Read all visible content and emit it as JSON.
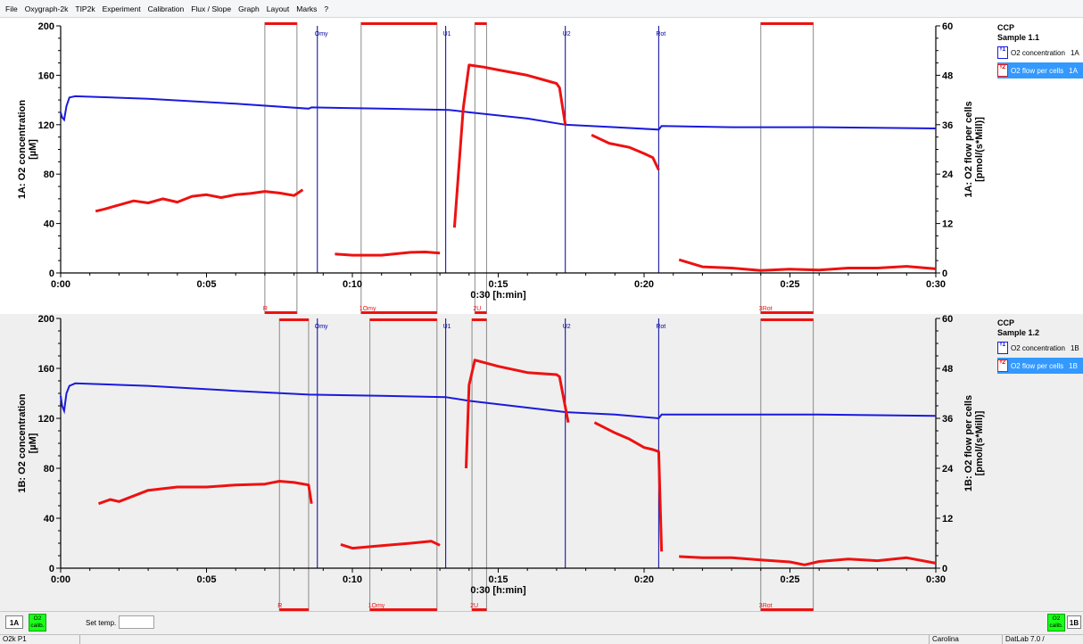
{
  "menu": [
    "File",
    "Oxygraph-2k",
    "TIP2k",
    "Experiment",
    "Calibration",
    "Flux / Slope",
    "Graph",
    "Layout",
    "Marks",
    "?"
  ],
  "colors": {
    "o2": "#1a1adc",
    "flow": "#ee1111",
    "mark_line": "#8a8a8a",
    "event_line": "#0000a0",
    "calib": "#1aff1a",
    "selected": "#3399ff"
  },
  "chart_data": [
    {
      "type": "line",
      "xlabel": "0:30 [h:min]",
      "ylabel": "1A: O2 concentration\n[µM]",
      "y2label": "1A: O2 flow per cells\n[pmol/(s*Mill)]",
      "x_ticks": [
        "0:00",
        "0:05",
        "0:10",
        "0:15",
        "0:20",
        "0:25",
        "0:30"
      ],
      "y_ticks": [
        "0",
        "40",
        "80",
        "120",
        "160",
        "200"
      ],
      "y2_ticks": [
        "0",
        "12",
        "24",
        "36",
        "48",
        "60"
      ],
      "xlim": [
        0,
        30
      ],
      "ylim": [
        0,
        200
      ],
      "y2lim": [
        0,
        60
      ],
      "events": [
        {
          "t": 8.8,
          "label": "Omy"
        },
        {
          "t": 13.2,
          "label": "U1"
        },
        {
          "t": 17.3,
          "label": "U2"
        },
        {
          "t": 20.5,
          "label": "Rot"
        }
      ],
      "marks": [
        {
          "t0": 7.0,
          "t1": 8.1,
          "label": "R"
        },
        {
          "t0": 10.3,
          "t1": 12.9,
          "label": "1Omy"
        },
        {
          "t0": 14.2,
          "t1": 14.6,
          "label": "2U"
        },
        {
          "t0": 24.0,
          "t1": 25.8,
          "label": "3Rot"
        }
      ],
      "series": [
        {
          "name": "O2 concentration",
          "axis": "left",
          "x": [
            0,
            0.05,
            0.12,
            0.2,
            0.3,
            0.5,
            3,
            6,
            8.5,
            8.6,
            11,
            13.3,
            14,
            16,
            17.3,
            19,
            20.5,
            20.6,
            23,
            26,
            30
          ],
          "y": [
            130,
            126,
            124,
            135,
            142,
            143,
            141,
            137,
            133,
            134,
            133,
            132,
            130,
            125,
            120,
            118,
            116,
            119,
            118,
            118,
            117
          ]
        },
        {
          "name": "O2 flow per cells",
          "axis": "right",
          "segments": [
            {
              "x": [
                1.2,
                1.5,
                2,
                2.5,
                3,
                3.5,
                4,
                4.5,
                5,
                5.5,
                6,
                6.5,
                7,
                7.5,
                8,
                8.3
              ],
              "y": [
                15,
                15.5,
                16.5,
                17.5,
                17,
                18,
                17.2,
                18.6,
                19,
                18.3,
                19,
                19.3,
                19.8,
                19.4,
                18.8,
                20.2
              ]
            },
            {
              "x": [
                9.4,
                10,
                11,
                12,
                12.5,
                13
              ],
              "y": [
                4.6,
                4.3,
                4.3,
                5,
                5.1,
                4.8
              ]
            },
            {
              "x": [
                13.5,
                13.8,
                14,
                14.5,
                15,
                16,
                16.5,
                17,
                17.1,
                17.3
              ],
              "y": [
                11,
                40,
                50.5,
                50,
                49.3,
                48,
                47,
                46,
                45,
                36
              ]
            },
            {
              "x": [
                18.2,
                18.8,
                19.5,
                20,
                20.3,
                20.5
              ],
              "y": [
                33.5,
                31.5,
                30.5,
                29,
                28,
                25
              ]
            },
            {
              "x": [
                21.2,
                22,
                23,
                24,
                25,
                26,
                27,
                28,
                29,
                30
              ],
              "y": [
                3.2,
                1.5,
                1.2,
                0.6,
                0.9,
                0.7,
                1.2,
                1.2,
                1.6,
                1.0
              ]
            }
          ]
        }
      ],
      "legend": {
        "title": "CCP",
        "subtitle": "Sample 1.1",
        "items": [
          {
            "label": "O2 concentration",
            "code": "1A",
            "selected": false
          },
          {
            "label": "O2 flow per cells",
            "code": "1A",
            "selected": true
          }
        ]
      }
    },
    {
      "type": "line",
      "xlabel": "0:30 [h:min]",
      "ylabel": "1B: O2 concentration\n[µM]",
      "y2label": "1B: O2 flow per cells\n[pmol/(s*Mill)]",
      "x_ticks": [
        "0:00",
        "0:05",
        "0:10",
        "0:15",
        "0:20",
        "0:25",
        "0:30"
      ],
      "y_ticks": [
        "0",
        "40",
        "80",
        "120",
        "160",
        "200"
      ],
      "y2_ticks": [
        "0",
        "12",
        "24",
        "36",
        "48",
        "60"
      ],
      "xlim": [
        0,
        30
      ],
      "ylim": [
        0,
        200
      ],
      "y2lim": [
        0,
        60
      ],
      "events": [
        {
          "t": 8.8,
          "label": "Omy"
        },
        {
          "t": 13.2,
          "label": "U1"
        },
        {
          "t": 17.3,
          "label": "U2"
        },
        {
          "t": 20.5,
          "label": "Rot"
        }
      ],
      "marks": [
        {
          "t0": 7.5,
          "t1": 8.5,
          "label": "R"
        },
        {
          "t0": 10.6,
          "t1": 12.9,
          "label": "1Omy"
        },
        {
          "t0": 14.1,
          "t1": 14.6,
          "label": "2U"
        },
        {
          "t0": 24.0,
          "t1": 25.8,
          "label": "3Rot"
        }
      ],
      "series": [
        {
          "name": "O2 concentration",
          "axis": "left",
          "x": [
            0,
            0.05,
            0.12,
            0.2,
            0.3,
            0.5,
            3,
            6,
            8.5,
            11,
            13.2,
            14,
            17.3,
            19,
            20.5,
            20.6,
            23,
            26,
            30
          ],
          "y": [
            138,
            130,
            126,
            140,
            146,
            148,
            146,
            142,
            139,
            138,
            137,
            134,
            125,
            123,
            120,
            123,
            123,
            123,
            122
          ]
        },
        {
          "name": "O2 flow per cells",
          "axis": "right",
          "segments": [
            {
              "x": [
                1.3,
                1.7,
                2,
                3,
                4,
                5,
                6,
                7,
                7.5,
                8,
                8.5,
                8.6
              ],
              "y": [
                15.5,
                16.5,
                16,
                18.7,
                19.5,
                19.5,
                20,
                20.2,
                20.9,
                20.6,
                20,
                15.5
              ]
            },
            {
              "x": [
                9.6,
                10,
                11,
                12,
                12.7,
                13
              ],
              "y": [
                5.7,
                4.8,
                5.4,
                6,
                6.5,
                5.5
              ]
            },
            {
              "x": [
                13.9,
                14,
                14.2,
                15,
                16,
                17,
                17.1,
                17.4
              ],
              "y": [
                24,
                44,
                50,
                48.5,
                47,
                46.5,
                46,
                35
              ]
            },
            {
              "x": [
                18.3,
                19,
                19.5,
                20,
                20.3,
                20.5,
                20.6
              ],
              "y": [
                35,
                32.5,
                31,
                29,
                28.5,
                28,
                4
              ]
            },
            {
              "x": [
                21.2,
                22,
                23,
                24,
                25,
                25.5,
                26,
                27,
                28,
                29,
                30
              ],
              "y": [
                2.8,
                2.5,
                2.5,
                2,
                1.5,
                0.8,
                1.6,
                2.2,
                1.8,
                2.5,
                1.2
              ]
            }
          ]
        }
      ],
      "legend": {
        "title": "CCP",
        "subtitle": "Sample 1.2",
        "items": [
          {
            "label": "O2 concentration",
            "code": "1B",
            "selected": false
          },
          {
            "label": "O2 flow per cells",
            "code": "1B",
            "selected": true
          }
        ]
      }
    }
  ],
  "statusstrip": {
    "channel_left": "1A",
    "calib_left": "O2\ncalib.",
    "set_temp_label": "Set temp.",
    "set_temp_value": "",
    "channel_right": "1B",
    "calib_right": "O2\ncalib."
  },
  "bottombar": {
    "device": "O2k P1",
    "operator": "Carolina",
    "version": "DatLab 7.0 /"
  }
}
